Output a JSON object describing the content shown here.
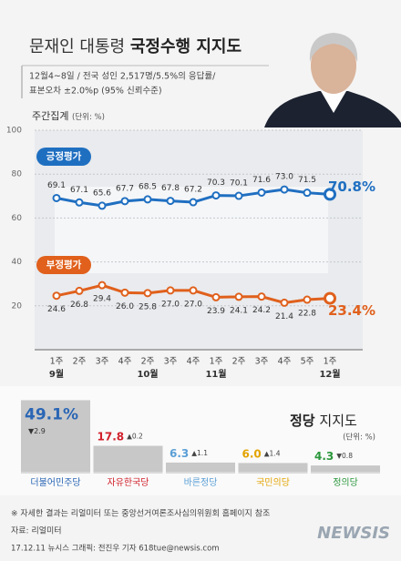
{
  "header": {
    "title_light": "문재인 대통령",
    "title_bold": "국정수행 지지도",
    "subtitle": [
      "12월4~8일 / 전국 성인 2,517명/5.5%의 응답률/",
      "표본오차 ±2.0%p (95% 신뢰수준)"
    ]
  },
  "chart_data": [
    {
      "type": "line",
      "title": "주간집계",
      "unit": "(단위: %)",
      "categories": [
        "1주",
        "2주",
        "3주",
        "4주",
        "2주",
        "3주",
        "4주",
        "1주",
        "2주",
        "3주",
        "4주",
        "5주",
        "1주"
      ],
      "month_labels": [
        "9월",
        null,
        null,
        null,
        "10월",
        null,
        null,
        "11월",
        null,
        null,
        null,
        null,
        "12월"
      ],
      "series": [
        {
          "name": "긍정평가",
          "color": "#1f6fc1",
          "values": [
            69.1,
            67.1,
            65.6,
            67.7,
            68.5,
            67.8,
            67.2,
            70.3,
            70.1,
            71.6,
            73.0,
            71.5,
            70.8
          ],
          "value_labels": [
            "69.1",
            "67.1",
            "65.6",
            "67.7",
            "68.5",
            "67.8",
            "67.2",
            "70.3",
            "70.1",
            "71.6",
            "73.0",
            "71.5",
            "70.8%"
          ]
        },
        {
          "name": "부정평가",
          "color": "#e0601c",
          "values": [
            24.6,
            26.8,
            29.4,
            26.0,
            25.8,
            27.0,
            27.0,
            23.9,
            24.1,
            24.2,
            21.4,
            22.8,
            23.4
          ],
          "value_labels": [
            "24.6",
            "26.8",
            "29.4",
            "26.0",
            "25.8",
            "27.0",
            "27.0",
            "23.9",
            "24.1",
            "24.2",
            "21.4",
            "22.8",
            "23.4%"
          ]
        }
      ],
      "ylim": [
        0,
        100
      ],
      "yticks": [
        20,
        40,
        60,
        80,
        100
      ],
      "grid": true
    },
    {
      "type": "bar",
      "title_bold": "정당",
      "title": "지지도",
      "unit": "(단위: %)",
      "categories": [
        "더불어민주당",
        "자유한국당",
        "바른정당",
        "국민의당",
        "정의당"
      ],
      "values": [
        49.1,
        17.8,
        6.3,
        6.0,
        4.3
      ],
      "value_labels": [
        "49.1%",
        "17.8",
        "6.3",
        "6.0",
        "4.3"
      ],
      "changes": [
        "▼2.9",
        "▲0.2",
        "▲1.1",
        "▲1.4",
        "▼0.8"
      ],
      "colors": [
        "#2a66b5",
        "#d1202b",
        "#5a9fd6",
        "#e3a300",
        "#2b973c"
      ],
      "color": "#c8c8c8"
    }
  ],
  "footer": {
    "note": "※ 자세한 결과는 리얼미터 또는 중앙선거여론조사심의위원회 홈페이지 참조",
    "source": "자료: 리얼미터",
    "credit": "17.12.11 뉴시스 그래픽: 전진우 기자 618tue@newsis.com",
    "logo": "NEWSIS"
  }
}
